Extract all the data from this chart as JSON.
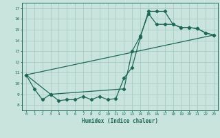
{
  "xlabel": "Humidex (Indice chaleur)",
  "background_color": "#c8e4dc",
  "grid_color": "#a8ccc4",
  "line_color": "#1e6858",
  "xlim": [
    -0.5,
    23.5
  ],
  "ylim": [
    7.5,
    17.5
  ],
  "yticks": [
    8,
    9,
    10,
    11,
    12,
    13,
    14,
    15,
    16,
    17
  ],
  "xticks": [
    0,
    1,
    2,
    3,
    4,
    5,
    6,
    7,
    8,
    9,
    10,
    11,
    12,
    13,
    14,
    15,
    16,
    17,
    18,
    19,
    20,
    21,
    22,
    23
  ],
  "line1_x": [
    0,
    1,
    2,
    3,
    4,
    5,
    6,
    7,
    8,
    9,
    10,
    11,
    12,
    13,
    14,
    15,
    16,
    17,
    18,
    19,
    20,
    21,
    22,
    23
  ],
  "line1_y": [
    10.8,
    9.5,
    8.5,
    9.0,
    8.4,
    8.5,
    8.5,
    8.8,
    8.5,
    8.8,
    8.5,
    8.6,
    10.5,
    11.5,
    14.3,
    16.7,
    16.7,
    16.7,
    15.5,
    15.2,
    15.2,
    15.1,
    14.7,
    14.5
  ],
  "line2_x": [
    0,
    3,
    12,
    13,
    14,
    15,
    16,
    17,
    18,
    19,
    20,
    21,
    22,
    23
  ],
  "line2_y": [
    10.8,
    9.0,
    9.5,
    13.0,
    14.4,
    16.5,
    15.5,
    15.5,
    15.5,
    15.2,
    15.2,
    15.1,
    14.7,
    14.5
  ],
  "line3_x": [
    0,
    23
  ],
  "line3_y": [
    10.8,
    14.5
  ],
  "marker_x": [
    0,
    1,
    2,
    3,
    4,
    5,
    6,
    7,
    8,
    9,
    10,
    11,
    12,
    13,
    14,
    15,
    16,
    17,
    18,
    19,
    20,
    21,
    22,
    23
  ],
  "marker_y": [
    10.8,
    9.5,
    8.5,
    9.0,
    8.4,
    8.5,
    8.5,
    8.8,
    8.5,
    8.8,
    8.5,
    8.6,
    10.5,
    11.5,
    14.3,
    16.7,
    16.7,
    16.7,
    15.5,
    15.2,
    15.2,
    15.1,
    14.7,
    14.5
  ]
}
